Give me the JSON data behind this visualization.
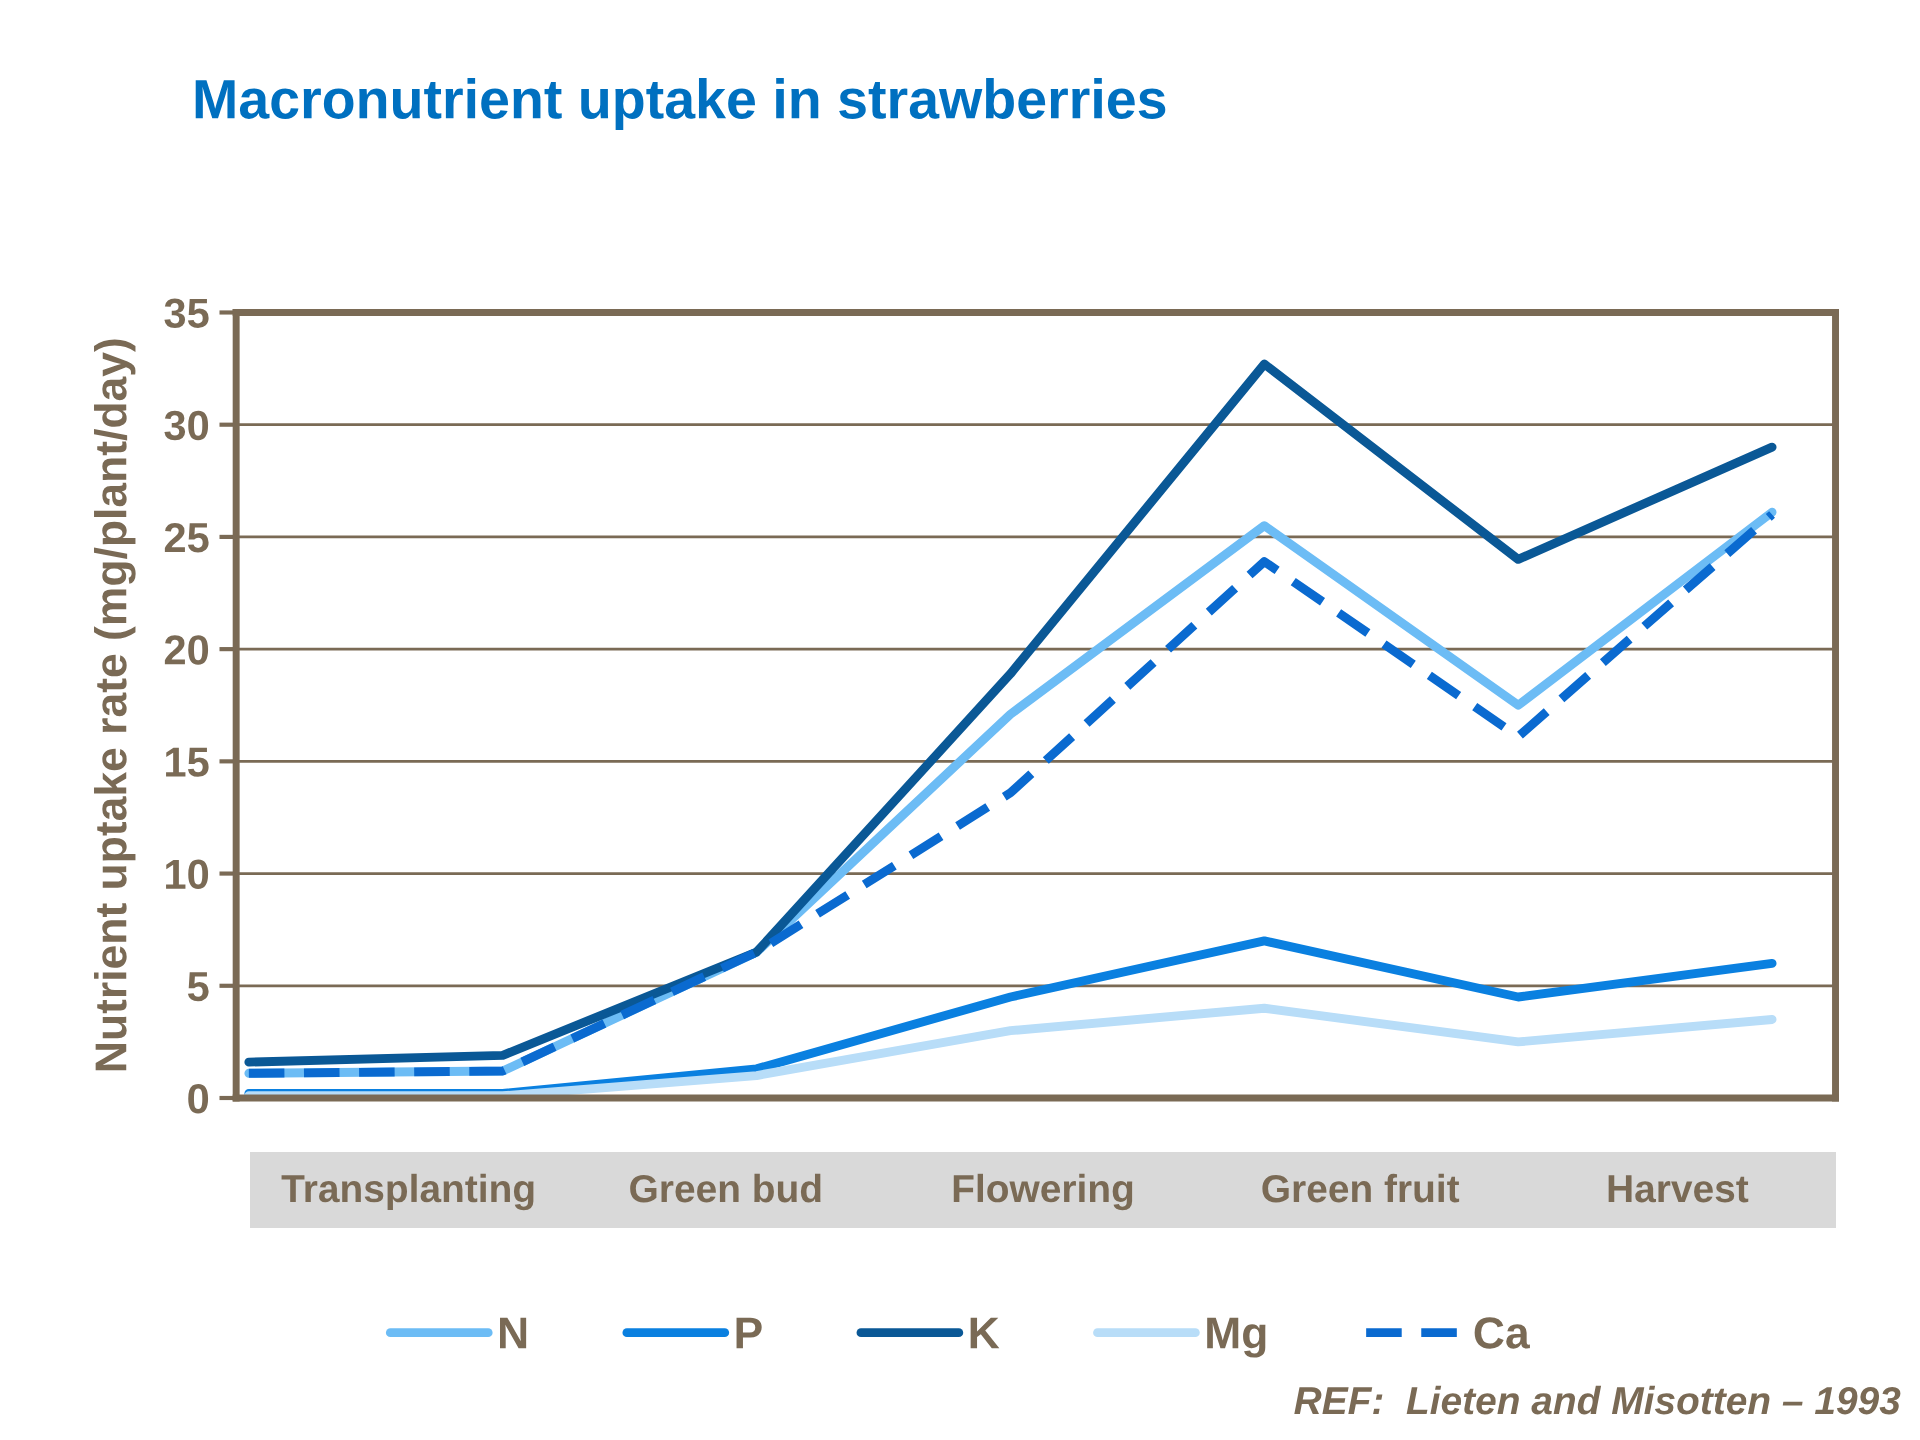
{
  "chart_data": {
    "type": "line",
    "title": "Macronutrient uptake in strawberries",
    "ylabel": "Nutrient uptake rate (mg/plant/day)",
    "annotations": [
      "Transplanting",
      "Green bud",
      "Flowering",
      "Green fruit",
      "Harvest",
      "REF:  Lieten and Misotten – 1993"
    ],
    "categories": [
      null,
      null,
      null,
      null,
      null,
      null,
      null
    ],
    "ylim": [
      0,
      35
    ],
    "yticks": [
      0,
      5,
      10,
      15,
      20,
      25,
      30,
      35
    ],
    "grid": "y",
    "legend": "bottom",
    "marker": "none",
    "series": [
      {
        "name": "N",
        "color": "#6cbcf5",
        "values": [
          1.1,
          1.2,
          6.5,
          17.1,
          25.5,
          17.5,
          26.1
        ],
        "line_style": "solid"
      },
      {
        "name": "P",
        "color": "#0a80e0",
        "values": [
          0.2,
          0.2,
          1.3,
          4.5,
          7.0,
          4.5,
          6.0
        ],
        "line_style": "solid"
      },
      {
        "name": "K",
        "color": "#0a5896",
        "values": [
          1.6,
          1.9,
          6.5,
          18.9,
          32.7,
          24.0,
          29.0
        ],
        "line_style": "solid"
      },
      {
        "name": "Mg",
        "color": "#b8ddf8",
        "values": [
          0.1,
          0.1,
          1.0,
          3.0,
          4.0,
          2.5,
          3.5
        ],
        "line_style": "solid"
      },
      {
        "name": "Ca",
        "color": "#0a6ad0",
        "values": [
          1.1,
          1.2,
          6.5,
          13.6,
          23.9,
          16.1,
          26.0
        ],
        "line_style": "dashed"
      }
    ]
  }
}
